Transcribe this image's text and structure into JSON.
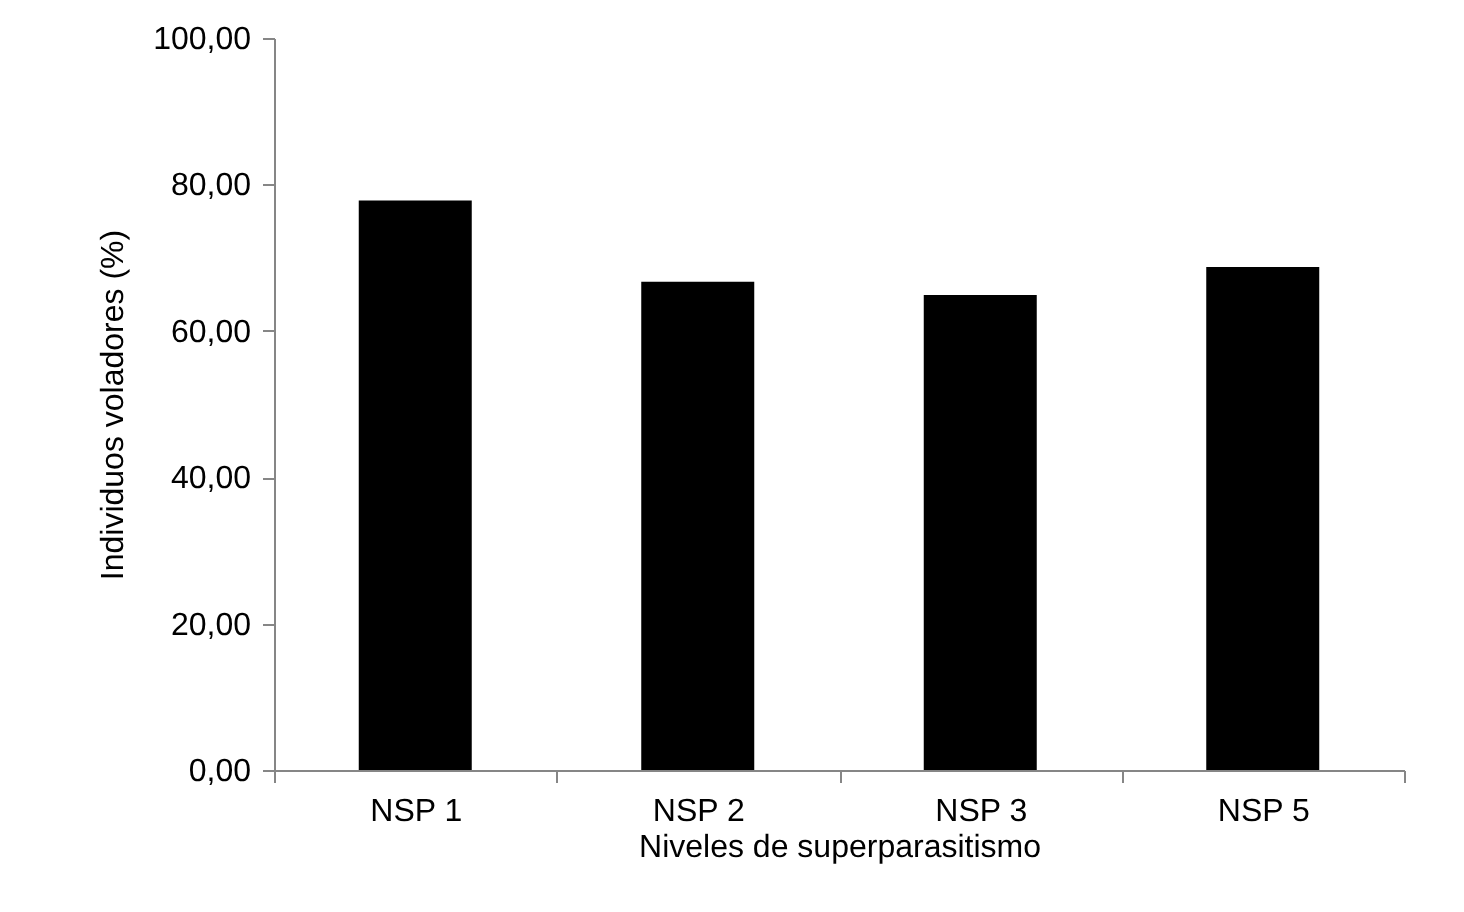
{
  "chart_data": {
    "type": "bar",
    "xlabel": "Niveles de superparasitismo",
    "ylabel": "Individuos voladores (%)",
    "categories": [
      "NSP 1",
      "NSP 2",
      "NSP 3",
      "NSP 5"
    ],
    "values": [
      77.8,
      66.7,
      64.9,
      68.7
    ],
    "color": "#000000",
    "ylim": [
      0,
      100
    ],
    "yticks": [
      {
        "value": 0,
        "label": "0,00"
      },
      {
        "value": 20,
        "label": "20,00"
      },
      {
        "value": 40,
        "label": "40,00"
      },
      {
        "value": 60,
        "label": "60,00"
      },
      {
        "value": 80,
        "label": "80,00"
      },
      {
        "value": 100,
        "label": "100,00"
      }
    ]
  }
}
